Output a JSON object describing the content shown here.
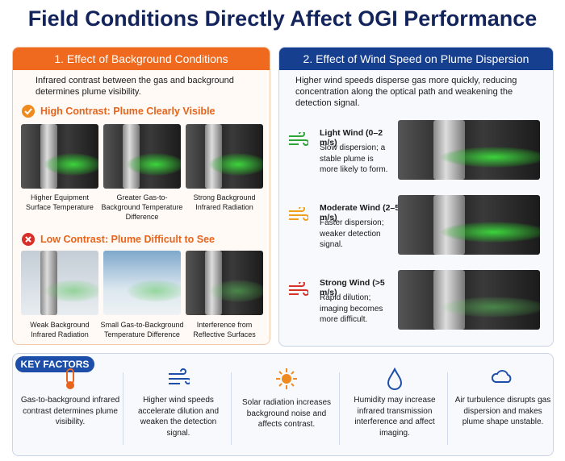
{
  "title": "Field Conditions Directly Affect OGI Performance",
  "background": {
    "heading": "1. Effect of Background Conditions",
    "intro": "Infrared contrast between the gas and background determines plume visibility.",
    "high": {
      "heading": "High Contrast: Plume Clearly Visible",
      "items": [
        "Higher Equipment Surface Temperature",
        "Greater Gas-to-Background Temperature Difference",
        "Strong Background Infrared Radiation"
      ]
    },
    "low": {
      "heading": "Low Contrast: Plume Difficult to See",
      "items": [
        "Weak Background Infrared Radiation",
        "Small Gas-to-Background Temperature Difference",
        "Interference from Reflective Surfaces"
      ]
    }
  },
  "wind": {
    "heading": "2. Effect of Wind Speed on Plume Dispersion",
    "intro": "Higher wind speeds disperse gas more quickly, reducing concentration along the optical path and weakening the detection signal.",
    "rows": [
      {
        "title": "Light Wind (0–2 m/s)",
        "text": "Slow dispersion; a stable plume is more likely to form."
      },
      {
        "title": "Moderate Wind (2–5 m/s)",
        "text": "Faster dispersion; weaker detection signal."
      },
      {
        "title": "Strong Wind (>5 m/s)",
        "text": "Rapid dilution; imaging becomes more difficult."
      }
    ]
  },
  "key_factors": {
    "label": "KEY FACTORS",
    "items": [
      "Gas-to-background infrared contrast determines plume visibility.",
      "Higher wind speeds accelerate dilution and weaken the detection signal.",
      "Solar radiation increases background noise and affects contrast.",
      "Humidity may increase infrared transmission interference and affect imaging.",
      "Air turbulence disrupts gas dispersion and makes plume shape unstable."
    ]
  }
}
